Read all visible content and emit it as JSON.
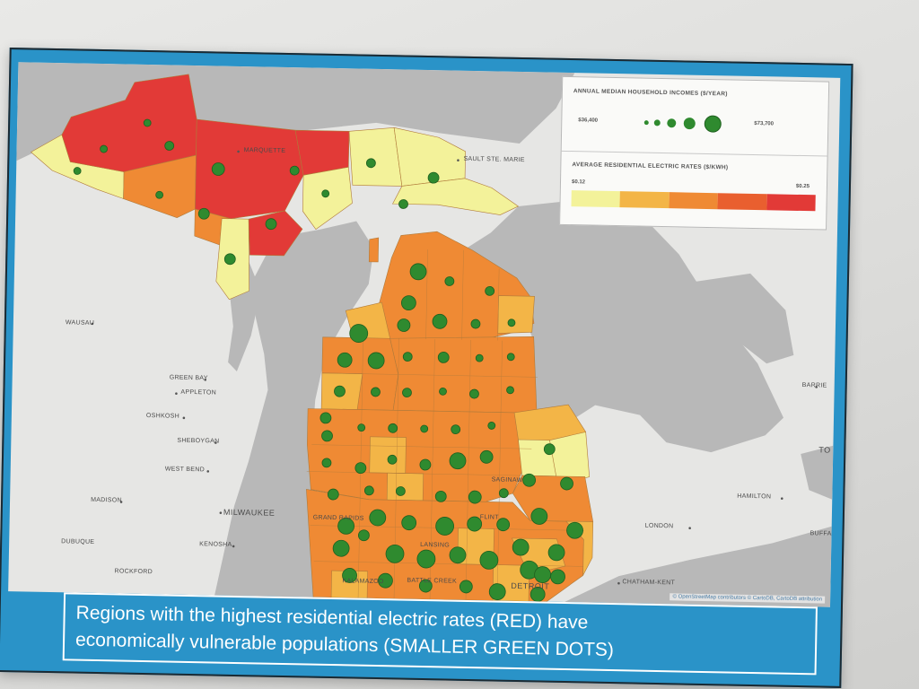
{
  "map": {
    "cities": [
      {
        "id": "marquette",
        "label": "MARQUETTE"
      },
      {
        "id": "sault",
        "label": "SAULT STE. MARIE"
      },
      {
        "id": "wausau",
        "label": "WAUSAU"
      },
      {
        "id": "greenbay",
        "label": "GREEN BAY"
      },
      {
        "id": "appleton",
        "label": "APPLETON"
      },
      {
        "id": "oshkosh",
        "label": "OSHKOSH"
      },
      {
        "id": "sheboygan",
        "label": "SHEBOYGAN"
      },
      {
        "id": "westbend",
        "label": "WEST BEND"
      },
      {
        "id": "madison",
        "label": "MADISON"
      },
      {
        "id": "milwaukee",
        "label": "MILWAUKEE"
      },
      {
        "id": "kenosha",
        "label": "KENOSHA"
      },
      {
        "id": "dubuque",
        "label": "DUBUQUE"
      },
      {
        "id": "rockford",
        "label": "ROCKFORD"
      },
      {
        "id": "grandrapids",
        "label": "GRAND RAPIDS"
      },
      {
        "id": "lansing",
        "label": "LANSING"
      },
      {
        "id": "battlecreek",
        "label": "BATTLE CREEK"
      },
      {
        "id": "kalamazoo",
        "label": "KALAMAZOO"
      },
      {
        "id": "flint",
        "label": "FLINT"
      },
      {
        "id": "saginaw",
        "label": "SAGINAW"
      },
      {
        "id": "detroit",
        "label": "DETROIT"
      },
      {
        "id": "london",
        "label": "LONDON"
      },
      {
        "id": "hamilton",
        "label": "HAMILTON"
      },
      {
        "id": "chatham",
        "label": "CHATHAM-KENT"
      },
      {
        "id": "barrie",
        "label": "BARRIE"
      },
      {
        "id": "toronto",
        "label": "TO"
      },
      {
        "id": "buffalo",
        "label": "BUFFA"
      }
    ],
    "attribution": "© OpenStreetMap contributors © CartoDB, CartoDB attribution"
  },
  "legend": {
    "income_title": "ANNUAL MEDIAN HOUSEHOLD INCOMES ($/YEAR)",
    "income_min": "$36,400",
    "income_max": "$73,700",
    "rate_title": "AVERAGE RESIDENTIAL ELECTRIC RATES ($/KWH)",
    "rate_min": "$0.12",
    "rate_max": "$0.25",
    "rate_colors": [
      "#f3f29a",
      "#f3b547",
      "#ef8a34",
      "#e95f2f",
      "#e23a37"
    ],
    "dot_color": "#2f8a2f"
  },
  "caption": {
    "line1": "Regions with the highest residential electric rates (RED) have",
    "line2": "economically vulnerable populations (SMALLER GREEN DOTS)"
  }
}
